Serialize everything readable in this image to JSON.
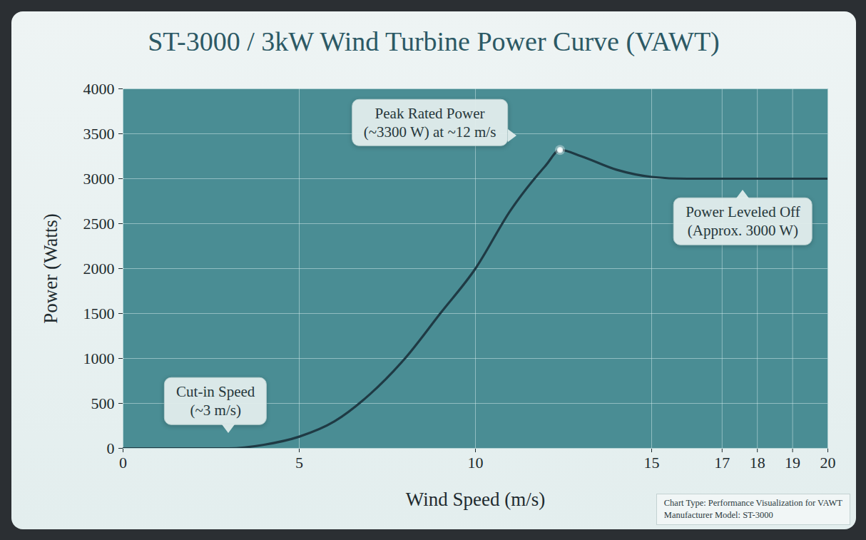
{
  "chart_data": {
    "type": "line",
    "title": "ST-3000 / 3kW Wind Turbine Power Curve (VAWT)",
    "x_label": "Wind Speed (m/s)",
    "y_label": "Power (Watts)",
    "x": [
      0,
      1,
      2,
      3,
      4,
      5,
      6,
      7,
      8,
      9,
      10,
      11,
      12,
      12.4,
      13,
      14,
      15,
      16,
      17,
      18,
      19,
      20
    ],
    "values": [
      0,
      0,
      0,
      0,
      40,
      130,
      300,
      600,
      1000,
      1500,
      2000,
      2650,
      3150,
      3320,
      3250,
      3100,
      3020,
      3000,
      3000,
      3000,
      3000,
      3000
    ],
    "color": "#1f3a44",
    "xlim": [
      0,
      20
    ],
    "xticks": [
      0,
      5,
      10,
      15,
      17,
      18,
      19,
      20
    ],
    "ylim": [
      0,
      4000
    ],
    "yticks": [
      0,
      500,
      1000,
      1500,
      2000,
      2500,
      3000,
      3500,
      4000
    ],
    "grid": true,
    "annotations": [
      {
        "text": "Cut-in Speed\n(~3 m/s)",
        "x": 3,
        "y": 0
      },
      {
        "text": "Peak Rated Power\n(~3300 W) at ~12 m/s",
        "x": 12.4,
        "y": 3320,
        "marker": "circle"
      },
      {
        "text": "Power Leveled Off\n(Approx. 3000 W)",
        "x": 17.6,
        "y": 3000
      }
    ],
    "footnote": [
      "Chart Type: Performance Visualization for VAWT",
      "Manufacturer Model: ST-3000"
    ]
  }
}
